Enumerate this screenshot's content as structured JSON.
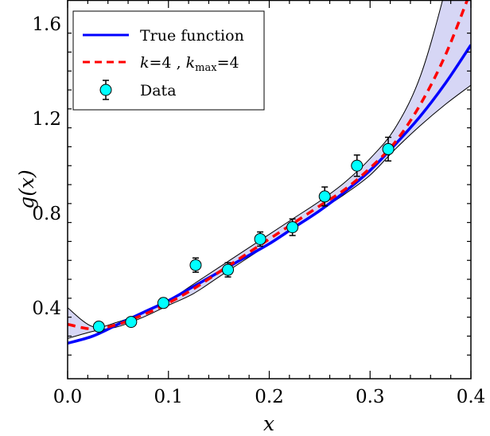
{
  "chart_data": {
    "type": "line",
    "xlabel": "x",
    "ylabel": "g(x)",
    "xlim": [
      0.0,
      0.4
    ],
    "ylim": [
      0.1,
      1.7
    ],
    "xticks": [
      0.0,
      0.1,
      0.2,
      0.3,
      0.4
    ],
    "xtick_labels": [
      "0.0",
      "0.1",
      "0.2",
      "0.3",
      "0.4"
    ],
    "yticks": [
      0.4,
      0.8,
      1.2,
      1.6
    ],
    "ytick_labels": [
      "0.4",
      "0.8",
      "1.2",
      "1.6"
    ],
    "grid": false,
    "legend_position": "top-left",
    "legend": {
      "true_function": "True function",
      "fit_k": "k",
      "fit_k_eq": "=4 , ",
      "fit_kmax": "k",
      "fit_kmax_sub": "max",
      "fit_kmax_eq": "=4",
      "data": "Data"
    },
    "colors": {
      "true_function": "#0000ff",
      "fit": "#ff0000",
      "band_fill": "#d6d6f5",
      "band_edge": "#000000",
      "marker": "#00ffff"
    },
    "series": [
      {
        "name": "True function",
        "style": "solid",
        "x": [
          0.0,
          0.025,
          0.05,
          0.075,
          0.1,
          0.125,
          0.15,
          0.175,
          0.2,
          0.225,
          0.25,
          0.275,
          0.3,
          0.325,
          0.35,
          0.375,
          0.4
        ],
        "y": [
          0.25,
          0.28,
          0.33,
          0.38,
          0.43,
          0.49,
          0.55,
          0.61,
          0.67,
          0.74,
          0.81,
          0.89,
          0.98,
          1.09,
          1.21,
          1.35,
          1.51
        ]
      },
      {
        "name": "k=4 , kmax=4",
        "style": "dashed",
        "x": [
          0.0,
          0.025,
          0.05,
          0.075,
          0.1,
          0.125,
          0.15,
          0.175,
          0.2,
          0.225,
          0.25,
          0.275,
          0.3,
          0.325,
          0.35,
          0.375,
          0.4
        ],
        "y": [
          0.33,
          0.31,
          0.33,
          0.37,
          0.42,
          0.48,
          0.55,
          0.62,
          0.69,
          0.76,
          0.83,
          0.9,
          0.99,
          1.1,
          1.26,
          1.47,
          1.74
        ]
      },
      {
        "name": "Data",
        "style": "errorbar",
        "x": [
          0.031,
          0.063,
          0.095,
          0.127,
          0.159,
          0.191,
          0.223,
          0.255,
          0.287,
          0.318
        ],
        "y": [
          0.32,
          0.34,
          0.42,
          0.58,
          0.56,
          0.69,
          0.74,
          0.87,
          1.0,
          1.07
        ],
        "yerr": [
          0.015,
          0.015,
          0.02,
          0.03,
          0.03,
          0.03,
          0.035,
          0.04,
          0.045,
          0.05
        ]
      }
    ],
    "band": {
      "x": [
        0.0,
        0.025,
        0.05,
        0.075,
        0.1,
        0.125,
        0.15,
        0.175,
        0.2,
        0.225,
        0.25,
        0.275,
        0.3,
        0.325,
        0.35,
        0.375,
        0.4
      ],
      "lower": [
        0.27,
        0.3,
        0.32,
        0.36,
        0.41,
        0.46,
        0.53,
        0.6,
        0.67,
        0.74,
        0.81,
        0.88,
        0.96,
        1.07,
        1.17,
        1.26,
        1.34
      ],
      "upper": [
        0.4,
        0.32,
        0.34,
        0.38,
        0.43,
        0.5,
        0.57,
        0.64,
        0.71,
        0.78,
        0.85,
        0.93,
        1.03,
        1.16,
        1.38,
        1.75,
        2.2
      ]
    }
  }
}
